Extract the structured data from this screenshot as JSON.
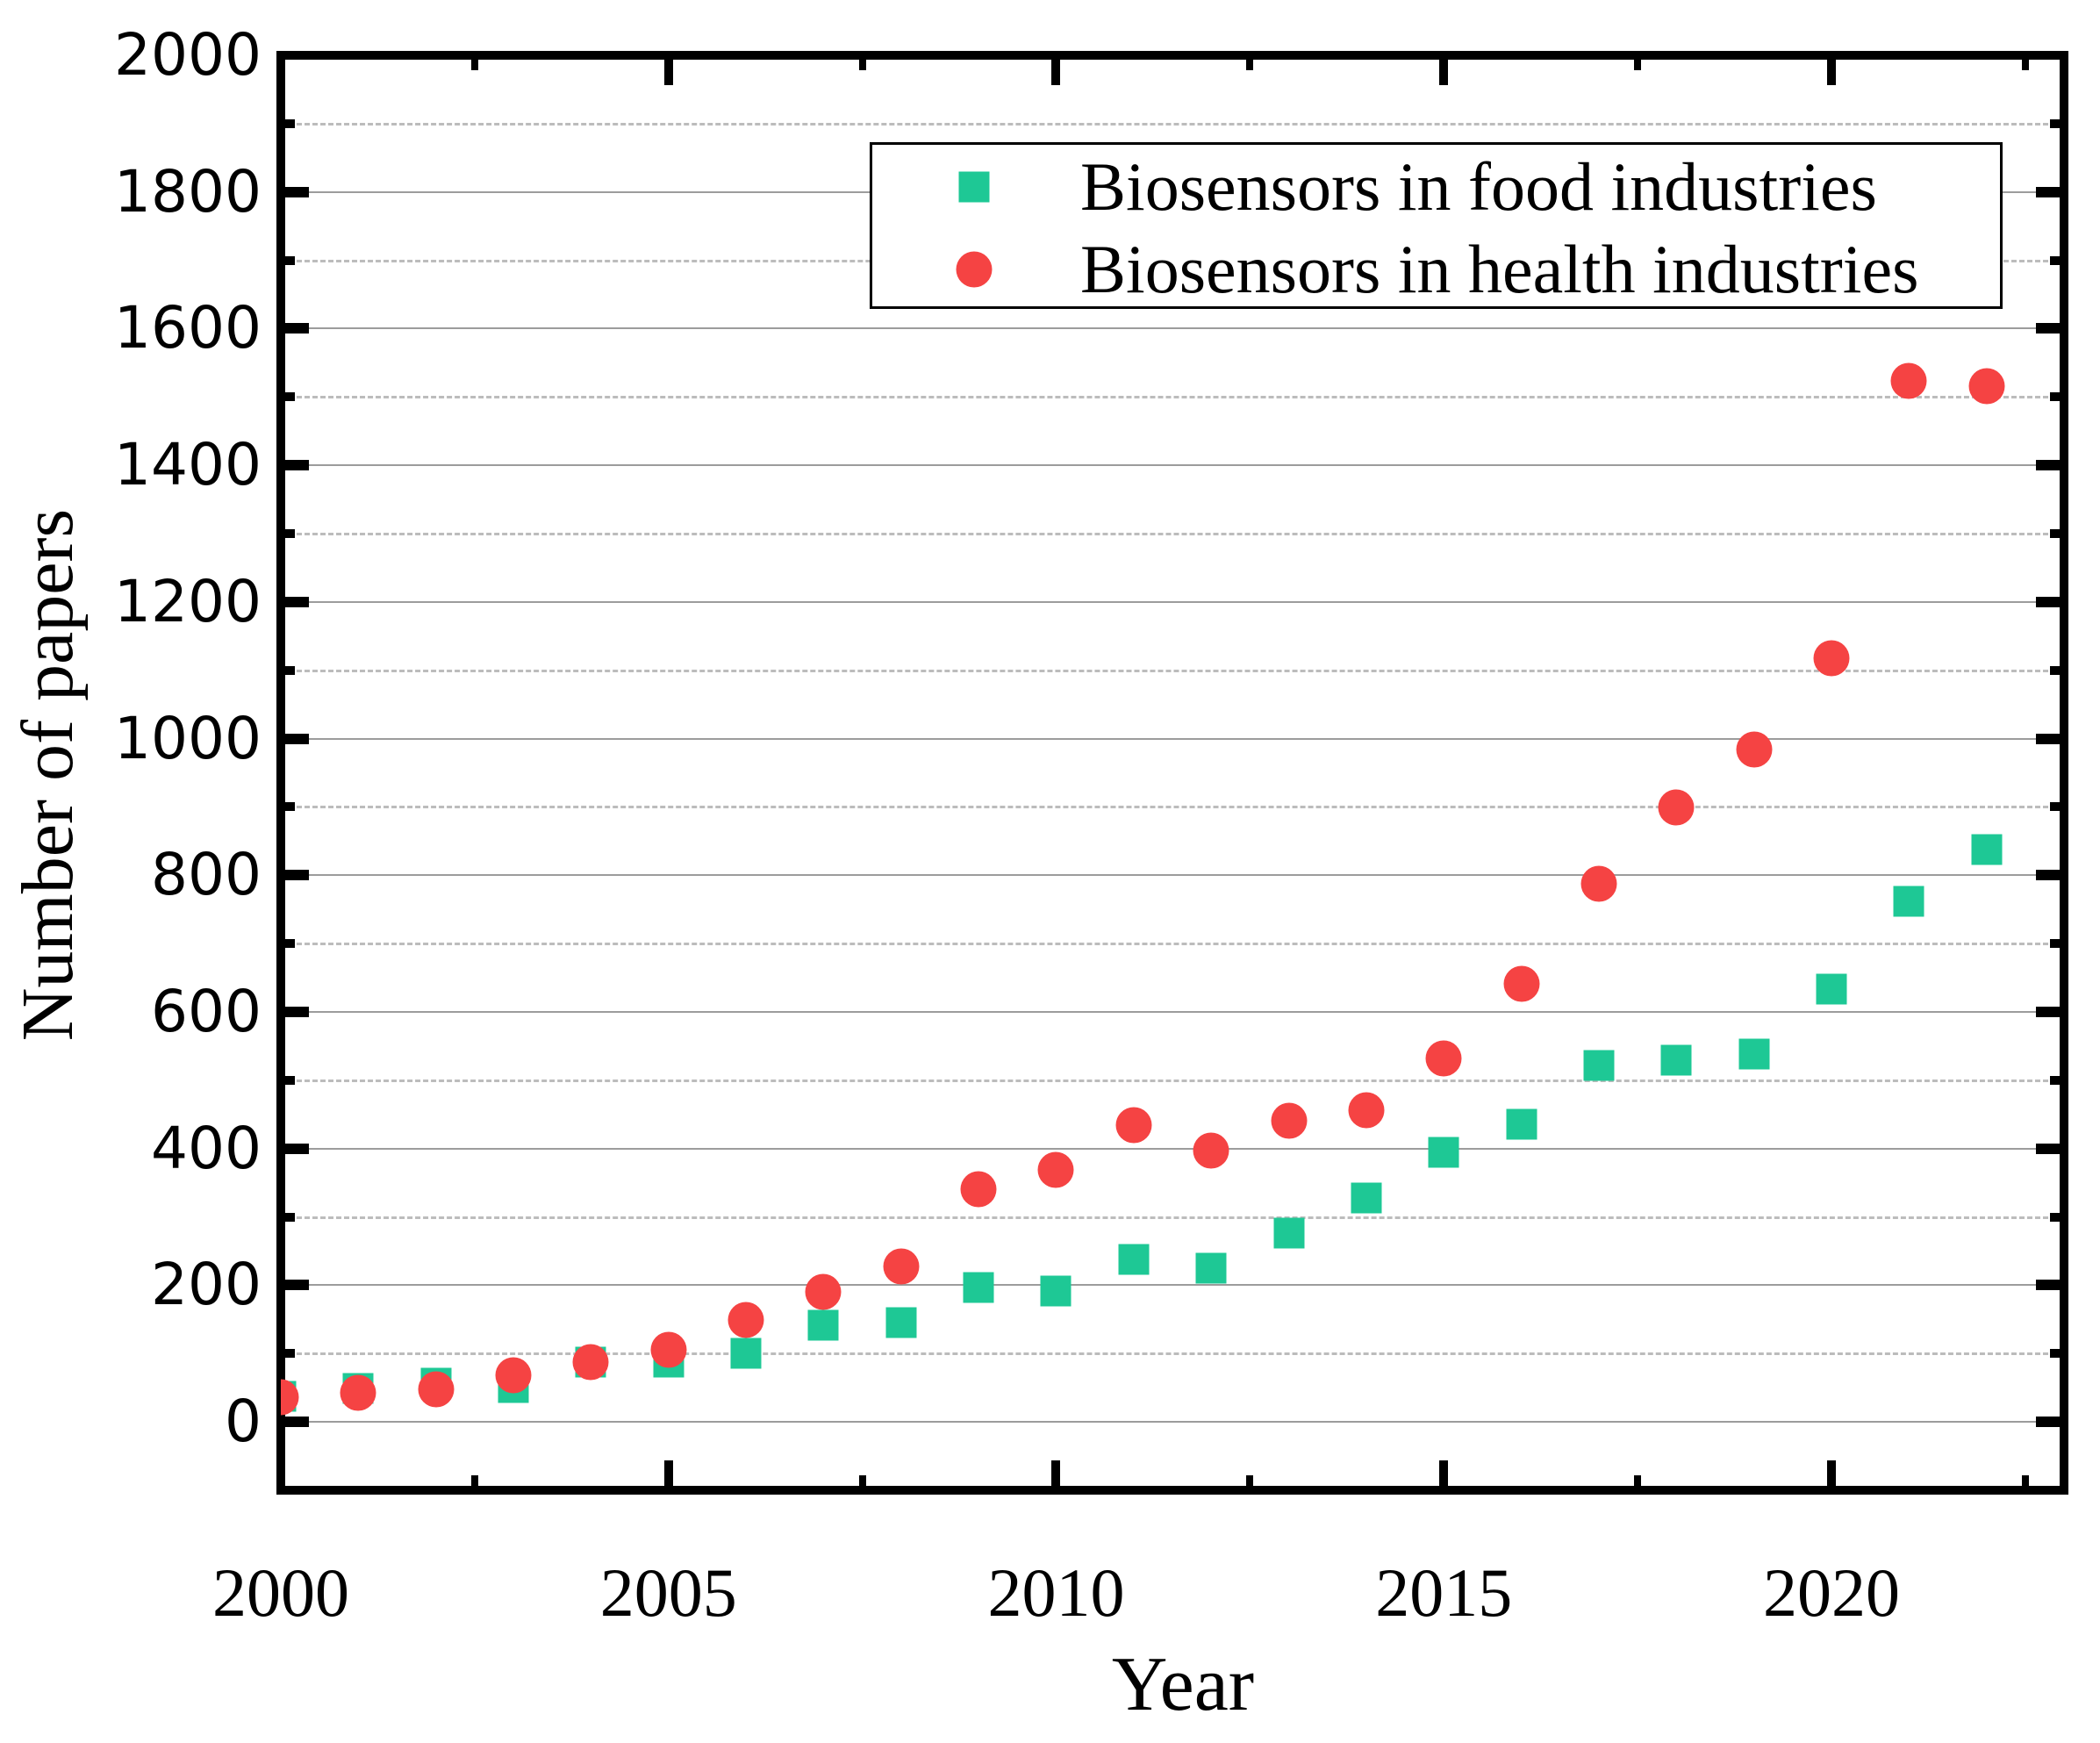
{
  "figure": {
    "background": "#ffffff",
    "y_axis": {
      "title": "Number of papers",
      "tick_label_values": [
        0,
        200,
        400,
        600,
        800,
        1000,
        1200,
        1400,
        1600,
        1800,
        2000
      ],
      "major_ticks": [
        0,
        200,
        400,
        600,
        800,
        1000,
        1200,
        1400,
        1600,
        1800
      ],
      "minor_ticks": [
        100,
        300,
        500,
        700,
        900,
        1100,
        1300,
        1500,
        1700,
        1900
      ],
      "solid_gridlines": [
        0,
        200,
        400,
        600,
        800,
        1000,
        1200,
        1400,
        1600,
        1800
      ],
      "dashed_gridlines": [
        100,
        300,
        500,
        700,
        900,
        1100,
        1300,
        1500,
        1700,
        1900
      ]
    },
    "x_axis": {
      "title": "Year",
      "tick_label_values": [
        2000,
        2005,
        2010,
        2015,
        2020
      ],
      "major_ticks": [
        2000,
        2005,
        2010,
        2015,
        2020
      ],
      "minor_ticks": [
        2002.5,
        2007.5,
        2012.5,
        2017.5,
        2022.5
      ]
    },
    "legend": {
      "items": [
        {
          "label": "Biosensors in food industries",
          "marker": "square",
          "color": "#1EC895"
        },
        {
          "label": "Biosensors in health industries",
          "marker": "circle",
          "color": "#F54343"
        }
      ]
    }
  },
  "chart_data": {
    "type": "scatter",
    "title": "",
    "xlabel": "Year",
    "ylabel": "Number of papers",
    "xlim": [
      2000,
      2023
    ],
    "ylim": [
      -100,
      2000
    ],
    "grid": "horizontal only; solid lines every 200, dashed lines every 100",
    "legend_position": "top center inside plot",
    "x": [
      2000,
      2001,
      2002,
      2003,
      2004,
      2005,
      2006,
      2007,
      2008,
      2009,
      2010,
      2011,
      2012,
      2013,
      2014,
      2015,
      2016,
      2017,
      2018,
      2019,
      2020,
      2021,
      2022
    ],
    "series": [
      {
        "name": "Biosensors in food industries",
        "marker": "square",
        "color": "#1EC895",
        "values": [
          37,
          49,
          57,
          50,
          88,
          88,
          100,
          142,
          145,
          197,
          192,
          238,
          225,
          276,
          328,
          395,
          436,
          522,
          530,
          538,
          633,
          762,
          838
        ]
      },
      {
        "name": "Biosensors in health industries",
        "marker": "circle",
        "color": "#F54343",
        "values": [
          36,
          42,
          48,
          68,
          87,
          105,
          149,
          190,
          228,
          340,
          369,
          434,
          397,
          441,
          456,
          532,
          641,
          787,
          899,
          984,
          1118,
          1524,
          1516
        ]
      }
    ]
  }
}
